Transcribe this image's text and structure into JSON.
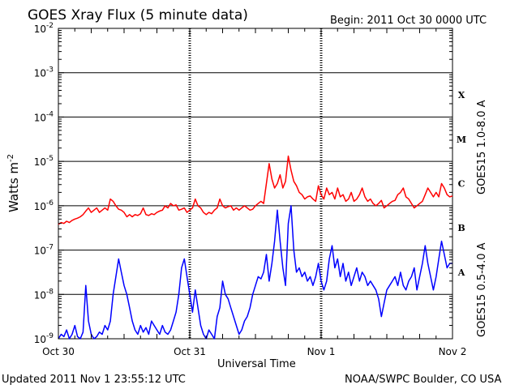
{
  "header": {
    "title": "GOES Xray Flux (5 minute data)",
    "begin": "Begin:  2011 Oct 30 0000 UTC"
  },
  "footer": {
    "updated": "Updated 2011 Nov  1 23:55:12 UTC",
    "credit": "NOAA/SWPC Boulder, CO USA"
  },
  "chart_data": {
    "type": "line",
    "title": "GOES Xray Flux (5 minute data)",
    "xlabel": "Universal Time",
    "ylabel": "Watts m",
    "ylabel_sup": "-2",
    "yscale": "log",
    "xlim": [
      0,
      72
    ],
    "ylim": [
      1e-09,
      0.01
    ],
    "x_ticks": [
      {
        "x": 0,
        "label": "Oct 30"
      },
      {
        "x": 24,
        "label": "Oct 31"
      },
      {
        "x": 48,
        "label": "Nov 1"
      },
      {
        "x": 72,
        "label": "Nov 2"
      }
    ],
    "y_ticks": [
      {
        "exp": -9,
        "base": "10",
        "sup": "-9"
      },
      {
        "exp": -8,
        "base": "10",
        "sup": "-8"
      },
      {
        "exp": -7,
        "base": "10",
        "sup": "-7"
      },
      {
        "exp": -6,
        "base": "10",
        "sup": "-6"
      },
      {
        "exp": -5,
        "base": "10",
        "sup": "-5"
      },
      {
        "exp": -4,
        "base": "10",
        "sup": "-4"
      },
      {
        "exp": -3,
        "base": "10",
        "sup": "-3"
      },
      {
        "exp": -2,
        "base": "10",
        "sup": "-2"
      }
    ],
    "flare_classes": [
      {
        "label": "X",
        "exp": -3.5
      },
      {
        "label": "M",
        "exp": -4.5
      },
      {
        "label": "C",
        "exp": -5.5
      },
      {
        "label": "B",
        "exp": -6.5
      },
      {
        "label": "A",
        "exp": -7.5
      }
    ],
    "grid": "horizontal lines at each decade, dashed vertical lines at day boundaries",
    "series": [
      {
        "name": "GOES15 1.0-8.0 A",
        "color": "#ff0000",
        "points": [
          [
            0,
            -6.42
          ],
          [
            0.5,
            -6.38
          ],
          [
            1,
            -6.4
          ],
          [
            1.5,
            -6.35
          ],
          [
            2,
            -6.38
          ],
          [
            2.5,
            -6.33
          ],
          [
            3,
            -6.3
          ],
          [
            3.5,
            -6.28
          ],
          [
            4,
            -6.25
          ],
          [
            4.5,
            -6.2
          ],
          [
            5,
            -6.12
          ],
          [
            5.5,
            -6.05
          ],
          [
            6,
            -6.15
          ],
          [
            6.5,
            -6.1
          ],
          [
            7,
            -6.05
          ],
          [
            7.5,
            -6.15
          ],
          [
            8,
            -6.1
          ],
          [
            8.5,
            -6.05
          ],
          [
            9,
            -6.1
          ],
          [
            9.5,
            -5.85
          ],
          [
            10,
            -5.9
          ],
          [
            10.5,
            -6.0
          ],
          [
            11,
            -6.08
          ],
          [
            11.5,
            -6.1
          ],
          [
            12,
            -6.15
          ],
          [
            12.5,
            -6.25
          ],
          [
            13,
            -6.2
          ],
          [
            13.5,
            -6.25
          ],
          [
            14,
            -6.2
          ],
          [
            14.5,
            -6.22
          ],
          [
            15,
            -6.18
          ],
          [
            15.5,
            -6.05
          ],
          [
            16,
            -6.2
          ],
          [
            16.5,
            -6.22
          ],
          [
            17,
            -6.18
          ],
          [
            17.5,
            -6.2
          ],
          [
            18,
            -6.15
          ],
          [
            18.5,
            -6.12
          ],
          [
            19,
            -6.1
          ],
          [
            19.5,
            -6.0
          ],
          [
            20,
            -6.05
          ],
          [
            20.5,
            -5.95
          ],
          [
            21,
            -6.0
          ],
          [
            21.5,
            -5.98
          ],
          [
            22,
            -6.1
          ],
          [
            22.5,
            -6.08
          ],
          [
            23,
            -6.05
          ],
          [
            23.5,
            -6.15
          ],
          [
            24,
            -6.1
          ],
          [
            24.5,
            -6.05
          ],
          [
            25,
            -5.85
          ],
          [
            25.5,
            -6.0
          ],
          [
            26,
            -6.05
          ],
          [
            26.5,
            -6.15
          ],
          [
            27,
            -6.2
          ],
          [
            27.5,
            -6.15
          ],
          [
            28,
            -6.18
          ],
          [
            28.5,
            -6.1
          ],
          [
            29,
            -6.05
          ],
          [
            29.5,
            -5.85
          ],
          [
            30,
            -6.0
          ],
          [
            30.5,
            -6.05
          ],
          [
            31,
            -6.02
          ],
          [
            31.5,
            -6.0
          ],
          [
            32,
            -6.1
          ],
          [
            32.5,
            -6.05
          ],
          [
            33,
            -6.1
          ],
          [
            33.5,
            -6.05
          ],
          [
            34,
            -6.0
          ],
          [
            34.5,
            -6.05
          ],
          [
            35,
            -6.1
          ],
          [
            35.5,
            -6.08
          ],
          [
            36,
            -6.0
          ],
          [
            36.5,
            -5.95
          ],
          [
            37,
            -5.9
          ],
          [
            37.5,
            -5.95
          ],
          [
            38,
            -5.5
          ],
          [
            38.5,
            -5.05
          ],
          [
            39,
            -5.4
          ],
          [
            39.5,
            -5.6
          ],
          [
            40,
            -5.5
          ],
          [
            40.5,
            -5.3
          ],
          [
            41,
            -5.6
          ],
          [
            41.5,
            -5.45
          ],
          [
            42,
            -4.88
          ],
          [
            42.5,
            -5.2
          ],
          [
            43,
            -5.45
          ],
          [
            43.5,
            -5.55
          ],
          [
            44,
            -5.7
          ],
          [
            44.5,
            -5.75
          ],
          [
            45,
            -5.85
          ],
          [
            45.5,
            -5.8
          ],
          [
            46,
            -5.78
          ],
          [
            46.5,
            -5.85
          ],
          [
            47,
            -5.9
          ],
          [
            47.5,
            -5.55
          ],
          [
            48,
            -5.75
          ],
          [
            48.5,
            -5.85
          ],
          [
            49,
            -5.6
          ],
          [
            49.5,
            -5.75
          ],
          [
            50,
            -5.7
          ],
          [
            50.5,
            -5.85
          ],
          [
            51,
            -5.6
          ],
          [
            51.5,
            -5.8
          ],
          [
            52,
            -5.75
          ],
          [
            52.5,
            -5.9
          ],
          [
            53,
            -5.85
          ],
          [
            53.5,
            -5.7
          ],
          [
            54,
            -5.9
          ],
          [
            54.5,
            -5.85
          ],
          [
            55,
            -5.75
          ],
          [
            55.5,
            -5.6
          ],
          [
            56,
            -5.8
          ],
          [
            56.5,
            -5.9
          ],
          [
            57,
            -5.85
          ],
          [
            57.5,
            -5.95
          ],
          [
            58,
            -6.0
          ],
          [
            58.5,
            -5.95
          ],
          [
            59,
            -5.88
          ],
          [
            59.5,
            -6.05
          ],
          [
            60,
            -6.0
          ],
          [
            60.5,
            -5.95
          ],
          [
            61,
            -5.9
          ],
          [
            61.5,
            -5.88
          ],
          [
            62,
            -5.75
          ],
          [
            62.5,
            -5.7
          ],
          [
            63,
            -5.6
          ],
          [
            63.5,
            -5.8
          ],
          [
            64,
            -5.85
          ],
          [
            64.5,
            -5.95
          ],
          [
            65,
            -6.05
          ],
          [
            65.5,
            -6.0
          ],
          [
            66,
            -5.95
          ],
          [
            66.5,
            -5.9
          ],
          [
            67,
            -5.75
          ],
          [
            67.5,
            -5.6
          ],
          [
            68,
            -5.7
          ],
          [
            68.5,
            -5.8
          ],
          [
            69,
            -5.7
          ],
          [
            69.5,
            -5.8
          ],
          [
            70,
            -5.5
          ],
          [
            70.5,
            -5.6
          ],
          [
            71,
            -5.75
          ],
          [
            71.5,
            -5.8
          ],
          [
            72,
            -5.78
          ]
        ]
      },
      {
        "name": "GOES15 0.5-4.0 A",
        "color": "#0000ff",
        "points": [
          [
            0,
            -9
          ],
          [
            0.5,
            -8.9
          ],
          [
            1,
            -8.95
          ],
          [
            1.5,
            -8.8
          ],
          [
            2,
            -9
          ],
          [
            2.5,
            -8.9
          ],
          [
            3,
            -8.7
          ],
          [
            3.5,
            -8.95
          ],
          [
            4,
            -9
          ],
          [
            4.5,
            -8.85
          ],
          [
            5,
            -7.8
          ],
          [
            5.5,
            -8.6
          ],
          [
            6,
            -8.9
          ],
          [
            6.5,
            -9
          ],
          [
            7,
            -8.95
          ],
          [
            7.5,
            -8.85
          ],
          [
            8,
            -8.9
          ],
          [
            8.5,
            -8.7
          ],
          [
            9,
            -8.8
          ],
          [
            9.5,
            -8.6
          ],
          [
            10,
            -8.0
          ],
          [
            10.5,
            -7.6
          ],
          [
            11,
            -7.2
          ],
          [
            11.5,
            -7.5
          ],
          [
            12,
            -7.8
          ],
          [
            12.5,
            -8.0
          ],
          [
            13,
            -8.3
          ],
          [
            13.5,
            -8.6
          ],
          [
            14,
            -8.8
          ],
          [
            14.5,
            -8.9
          ],
          [
            15,
            -8.7
          ],
          [
            15.5,
            -8.85
          ],
          [
            16,
            -8.75
          ],
          [
            16.5,
            -8.9
          ],
          [
            17,
            -8.6
          ],
          [
            17.5,
            -8.7
          ],
          [
            18,
            -8.8
          ],
          [
            18.5,
            -8.9
          ],
          [
            19,
            -8.7
          ],
          [
            19.5,
            -8.85
          ],
          [
            20,
            -8.9
          ],
          [
            20.5,
            -8.8
          ],
          [
            21,
            -8.6
          ],
          [
            21.5,
            -8.4
          ],
          [
            22,
            -8.0
          ],
          [
            22.5,
            -7.4
          ],
          [
            23,
            -7.2
          ],
          [
            23.5,
            -7.6
          ],
          [
            24,
            -8.0
          ],
          [
            24.5,
            -8.4
          ],
          [
            25,
            -7.9
          ],
          [
            25.5,
            -8.3
          ],
          [
            26,
            -8.7
          ],
          [
            26.5,
            -8.9
          ],
          [
            27,
            -9
          ],
          [
            27.5,
            -8.8
          ],
          [
            28,
            -8.9
          ],
          [
            28.5,
            -9
          ],
          [
            29,
            -8.5
          ],
          [
            29.5,
            -8.3
          ],
          [
            30,
            -7.7
          ],
          [
            30.5,
            -8.0
          ],
          [
            31,
            -8.1
          ],
          [
            31.5,
            -8.3
          ],
          [
            32,
            -8.5
          ],
          [
            32.5,
            -8.7
          ],
          [
            33,
            -8.9
          ],
          [
            33.5,
            -8.8
          ],
          [
            34,
            -8.6
          ],
          [
            34.5,
            -8.5
          ],
          [
            35,
            -8.3
          ],
          [
            35.5,
            -8.0
          ],
          [
            36,
            -7.8
          ],
          [
            36.5,
            -7.6
          ],
          [
            37,
            -7.65
          ],
          [
            37.5,
            -7.5
          ],
          [
            38,
            -7.1
          ],
          [
            38.5,
            -7.7
          ],
          [
            39,
            -7.3
          ],
          [
            39.5,
            -6.8
          ],
          [
            40,
            -6.1
          ],
          [
            40.5,
            -6.8
          ],
          [
            41,
            -7.4
          ],
          [
            41.5,
            -7.8
          ],
          [
            42,
            -6.4
          ],
          [
            42.5,
            -6.0
          ],
          [
            43,
            -7.0
          ],
          [
            43.5,
            -7.5
          ],
          [
            44,
            -7.4
          ],
          [
            44.5,
            -7.6
          ],
          [
            45,
            -7.5
          ],
          [
            45.5,
            -7.7
          ],
          [
            46,
            -7.6
          ],
          [
            46.5,
            -7.8
          ],
          [
            47,
            -7.6
          ],
          [
            47.5,
            -7.3
          ],
          [
            48,
            -7.7
          ],
          [
            48.5,
            -7.9
          ],
          [
            49,
            -7.7
          ],
          [
            49.5,
            -7.2
          ],
          [
            50,
            -6.9
          ],
          [
            50.5,
            -7.4
          ],
          [
            51,
            -7.2
          ],
          [
            51.5,
            -7.6
          ],
          [
            52,
            -7.3
          ],
          [
            52.5,
            -7.7
          ],
          [
            53,
            -7.5
          ],
          [
            53.5,
            -7.8
          ],
          [
            54,
            -7.6
          ],
          [
            54.5,
            -7.4
          ],
          [
            55,
            -7.7
          ],
          [
            55.5,
            -7.5
          ],
          [
            56,
            -7.6
          ],
          [
            56.5,
            -7.8
          ],
          [
            57,
            -7.7
          ],
          [
            57.5,
            -7.8
          ],
          [
            58,
            -7.9
          ],
          [
            58.5,
            -8.1
          ],
          [
            59,
            -8.5
          ],
          [
            59.5,
            -8.2
          ],
          [
            60,
            -7.9
          ],
          [
            60.5,
            -7.8
          ],
          [
            61,
            -7.7
          ],
          [
            61.5,
            -7.6
          ],
          [
            62,
            -7.8
          ],
          [
            62.5,
            -7.5
          ],
          [
            63,
            -7.8
          ],
          [
            63.5,
            -7.9
          ],
          [
            64,
            -7.7
          ],
          [
            64.5,
            -7.6
          ],
          [
            65,
            -7.4
          ],
          [
            65.5,
            -7.9
          ],
          [
            66,
            -7.6
          ],
          [
            66.5,
            -7.3
          ],
          [
            67,
            -6.9
          ],
          [
            67.5,
            -7.3
          ],
          [
            68,
            -7.6
          ],
          [
            68.5,
            -7.9
          ],
          [
            69,
            -7.6
          ],
          [
            69.5,
            -7.2
          ],
          [
            70,
            -6.8
          ],
          [
            70.5,
            -7.1
          ],
          [
            71,
            -7.4
          ],
          [
            71.5,
            -7.3
          ],
          [
            72,
            -7.3
          ]
        ]
      }
    ]
  }
}
